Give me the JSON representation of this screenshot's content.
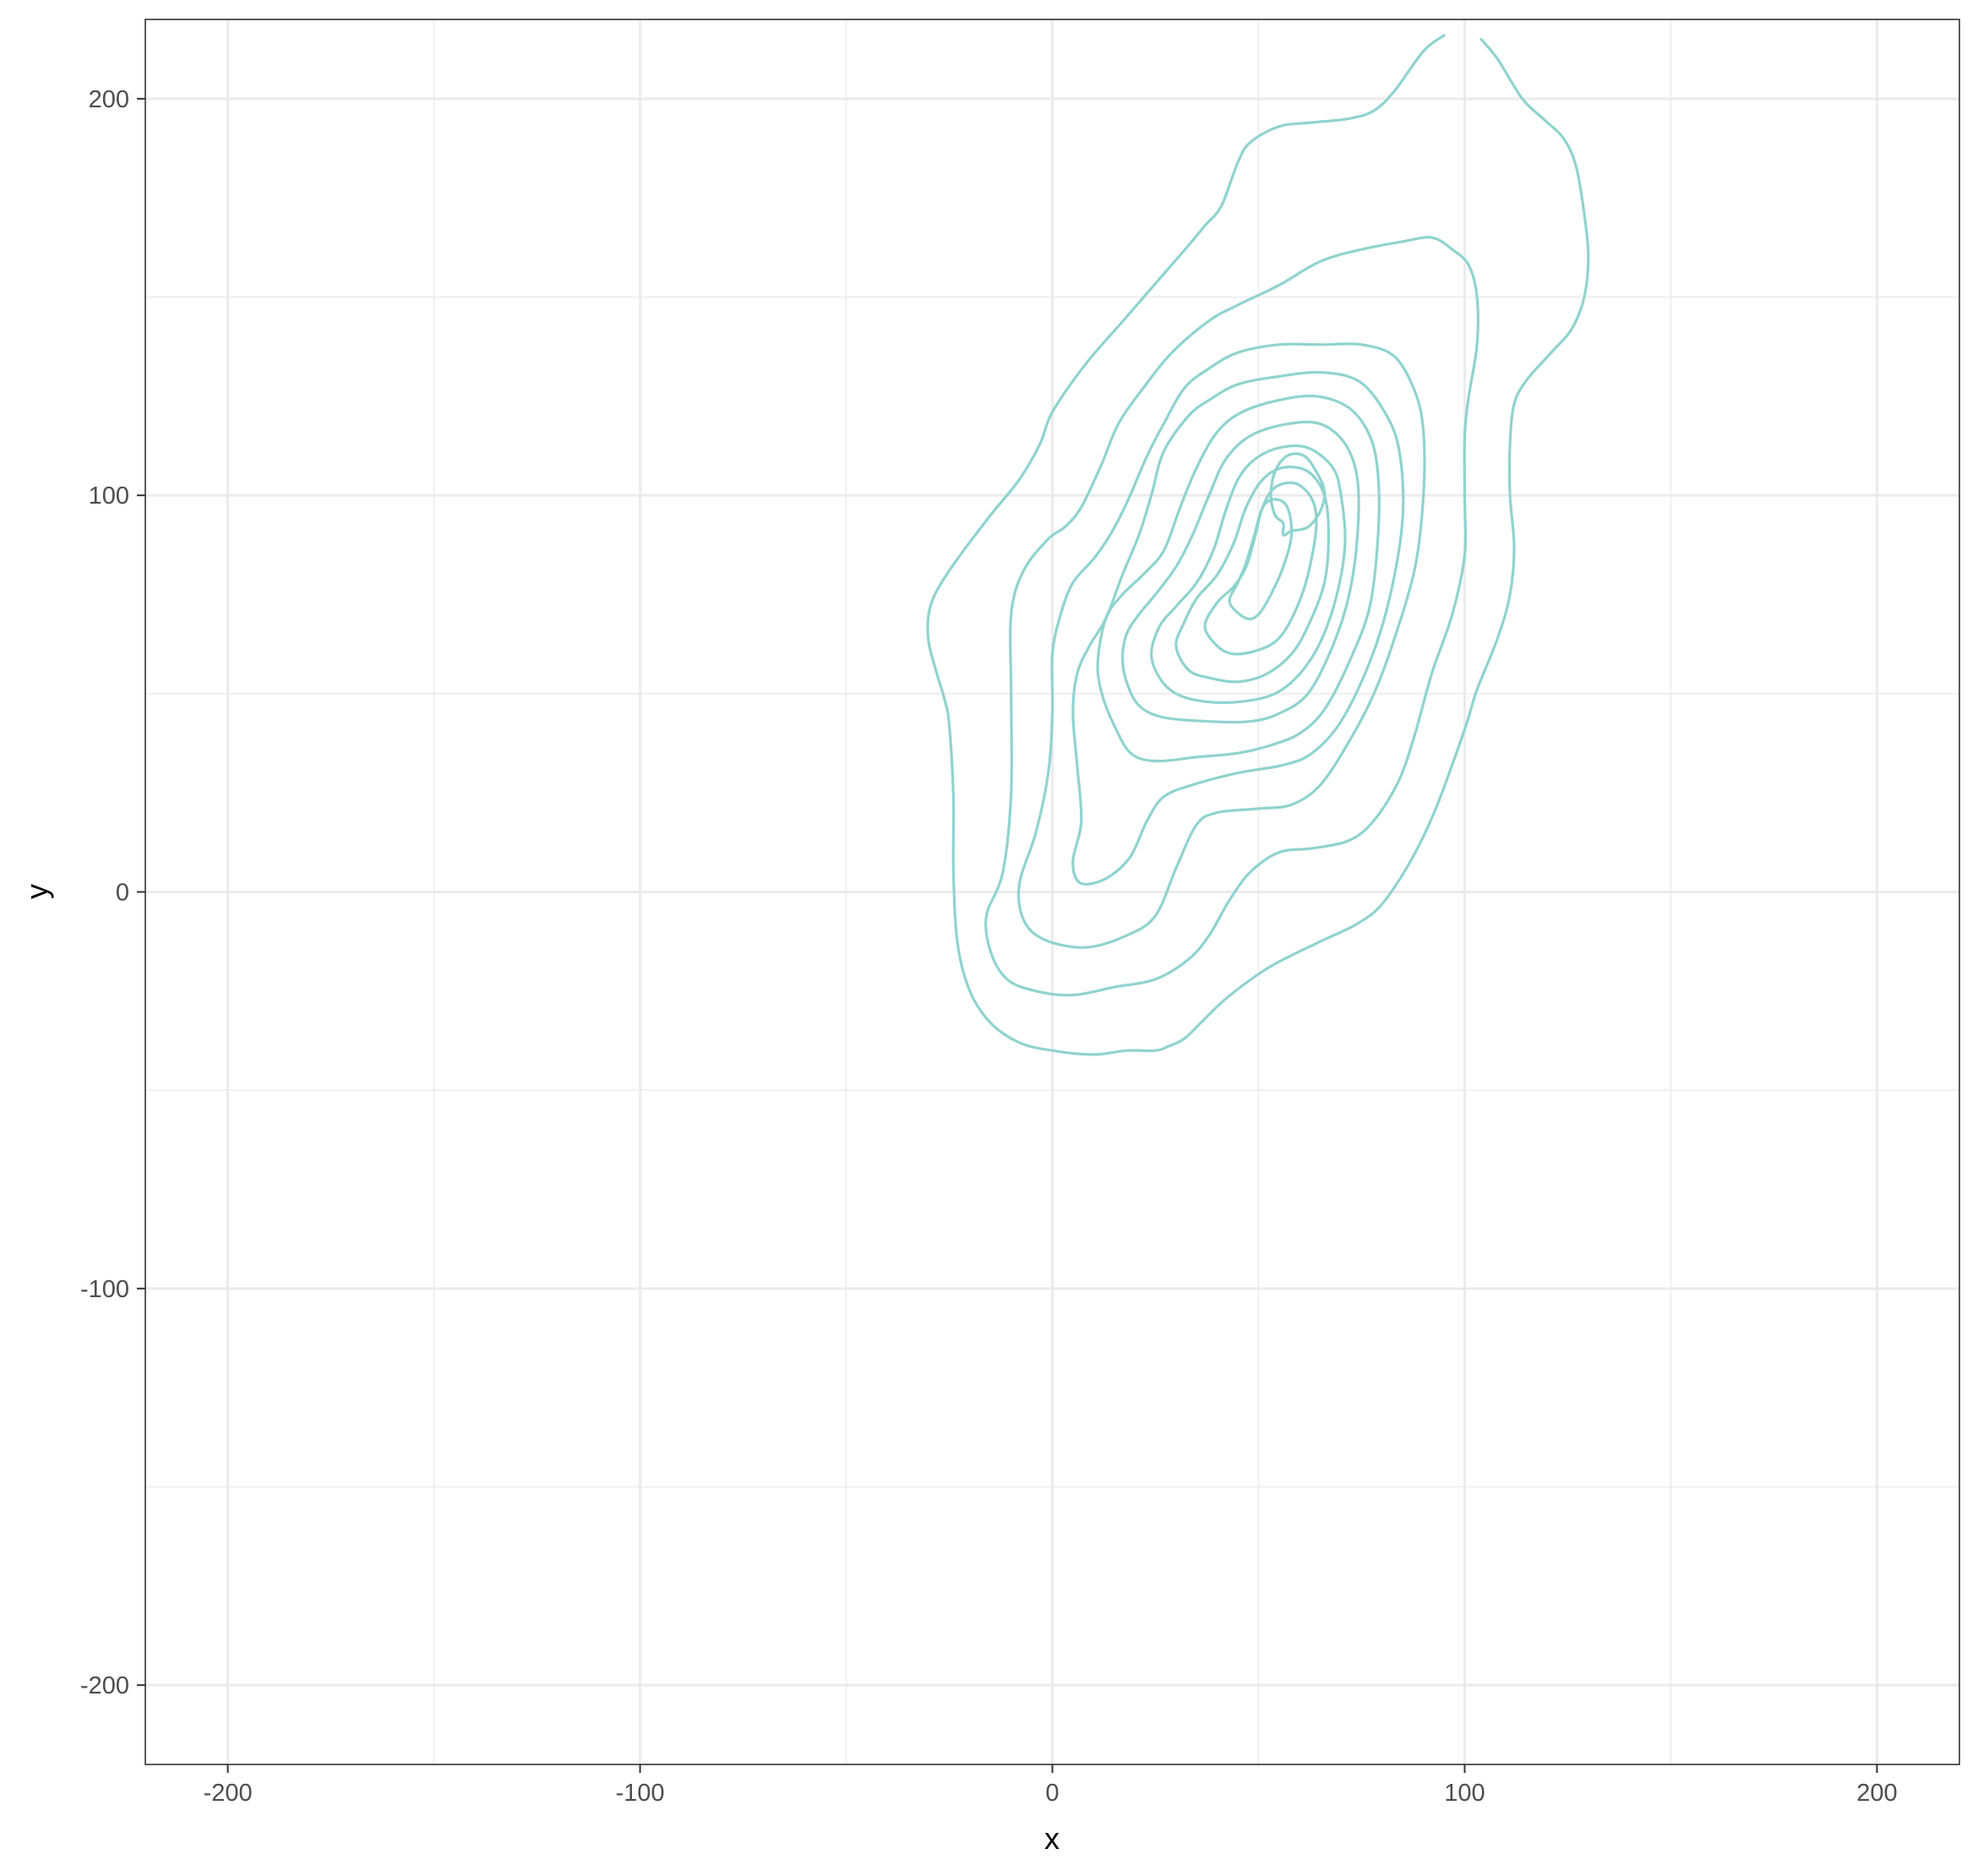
{
  "chart_data": {
    "type": "contour",
    "title": "",
    "xlabel": "x",
    "ylabel": "y",
    "xlim": [
      -220,
      220
    ],
    "ylim": [
      -220,
      220
    ],
    "grid": true,
    "legend": "none",
    "colors": {
      "contour": "#8fd3cf",
      "grid": "#ebebeb",
      "panel_border": "#333333",
      "tick_text": "#4d4d4d",
      "axis_title": "#000000"
    },
    "x_ticks": [
      {
        "value": -200,
        "label": "-200"
      },
      {
        "value": -100,
        "label": "-100"
      },
      {
        "value": 0,
        "label": "0"
      },
      {
        "value": 100,
        "label": "100"
      },
      {
        "value": 200,
        "label": "200"
      }
    ],
    "y_ticks": [
      {
        "value": 200,
        "label": "200"
      },
      {
        "value": 100,
        "label": "100"
      },
      {
        "value": 0,
        "label": "0"
      },
      {
        "value": -100,
        "label": "-100"
      },
      {
        "value": -200,
        "label": "-200"
      }
    ],
    "minor_grid": {
      "x": [
        -150,
        -50,
        50,
        150
      ],
      "y": [
        150,
        50,
        -50,
        -150
      ]
    },
    "contours": [
      {
        "level": 1,
        "closed": false,
        "points": [
          [
            95,
            216
          ],
          [
            90,
            212
          ],
          [
            83,
            202
          ],
          [
            78,
            197
          ],
          [
            72,
            195
          ],
          [
            63,
            194
          ],
          [
            55,
            193
          ],
          [
            48,
            189
          ],
          [
            45,
            184
          ],
          [
            41,
            173
          ],
          [
            37,
            168
          ],
          [
            33,
            163
          ],
          [
            28,
            157
          ],
          [
            18,
            145
          ],
          [
            8,
            133
          ],
          [
            0,
            121
          ],
          [
            -3,
            113
          ],
          [
            -8,
            104
          ],
          [
            -15,
            95
          ],
          [
            -23,
            84
          ],
          [
            -28,
            76
          ],
          [
            -30,
            70
          ],
          [
            -30,
            63
          ],
          [
            -28,
            55
          ],
          [
            -26,
            48
          ],
          [
            -25,
            42
          ],
          [
            -24,
            24
          ],
          [
            -24,
            5
          ],
          [
            -23,
            -13
          ],
          [
            -20,
            -25
          ],
          [
            -15,
            -33
          ],
          [
            -8,
            -38
          ],
          [
            0,
            -40
          ],
          [
            10,
            -41
          ],
          [
            18,
            -40
          ],
          [
            25,
            -40
          ],
          [
            28,
            -39
          ],
          [
            32,
            -37
          ],
          [
            36,
            -33
          ],
          [
            42,
            -27
          ],
          [
            51,
            -20
          ],
          [
            58,
            -16
          ],
          [
            66,
            -12
          ],
          [
            74,
            -8
          ],
          [
            80,
            -3
          ],
          [
            87,
            8
          ],
          [
            93,
            21
          ],
          [
            100,
            41
          ],
          [
            103,
            51
          ],
          [
            108,
            64
          ],
          [
            111,
            75
          ],
          [
            112,
            87
          ],
          [
            111,
            100
          ],
          [
            111,
            113
          ],
          [
            112,
            123
          ],
          [
            115,
            129
          ],
          [
            121,
            136
          ],
          [
            126,
            142
          ],
          [
            129,
            150
          ],
          [
            130,
            160
          ],
          [
            129,
            171
          ],
          [
            127,
            183
          ],
          [
            124,
            190
          ],
          [
            119,
            195
          ],
          [
            114,
            200
          ],
          [
            108,
            210
          ],
          [
            104,
            215
          ]
        ]
      },
      {
        "level": 2,
        "closed": true,
        "points": [
          [
            -1,
            89
          ],
          [
            -7,
            81
          ],
          [
            -10,
            70
          ],
          [
            -10,
            50
          ],
          [
            -10,
            25
          ],
          [
            -12,
            5
          ],
          [
            -16,
            -6
          ],
          [
            -15,
            -15
          ],
          [
            -11,
            -22
          ],
          [
            -4,
            -25
          ],
          [
            5,
            -26
          ],
          [
            15,
            -24
          ],
          [
            25,
            -22
          ],
          [
            33,
            -17
          ],
          [
            38,
            -11
          ],
          [
            43,
            -2
          ],
          [
            48,
            5
          ],
          [
            55,
            10
          ],
          [
            63,
            11
          ],
          [
            72,
            13
          ],
          [
            78,
            18
          ],
          [
            84,
            28
          ],
          [
            88,
            40
          ],
          [
            92,
            55
          ],
          [
            97,
            70
          ],
          [
            100,
            85
          ],
          [
            100,
            100
          ],
          [
            100,
            115
          ],
          [
            101,
            125
          ],
          [
            103,
            138
          ],
          [
            103,
            150
          ],
          [
            101,
            158
          ],
          [
            97,
            162
          ],
          [
            92,
            165
          ],
          [
            85,
            164
          ],
          [
            75,
            162
          ],
          [
            65,
            159
          ],
          [
            55,
            153
          ],
          [
            45,
            148
          ],
          [
            38,
            144
          ],
          [
            29,
            136
          ],
          [
            22,
            127
          ],
          [
            16,
            118
          ],
          [
            12,
            108
          ],
          [
            7,
            97
          ],
          [
            3,
            92
          ]
        ]
      },
      {
        "level": 3,
        "closed": true,
        "points": [
          [
            5,
            78
          ],
          [
            2,
            70
          ],
          [
            0,
            60
          ],
          [
            0,
            45
          ],
          [
            -1,
            30
          ],
          [
            -4,
            15
          ],
          [
            -8,
            2
          ],
          [
            -7,
            -7
          ],
          [
            -2,
            -12
          ],
          [
            8,
            -14
          ],
          [
            18,
            -11
          ],
          [
            25,
            -6
          ],
          [
            30,
            6
          ],
          [
            35,
            17
          ],
          [
            40,
            20
          ],
          [
            50,
            21
          ],
          [
            58,
            22
          ],
          [
            65,
            27
          ],
          [
            72,
            38
          ],
          [
            78,
            50
          ],
          [
            83,
            64
          ],
          [
            88,
            82
          ],
          [
            90,
            100
          ],
          [
            90,
            116
          ],
          [
            88,
            126
          ],
          [
            83,
            135
          ],
          [
            75,
            138
          ],
          [
            65,
            138
          ],
          [
            55,
            138
          ],
          [
            45,
            136
          ],
          [
            38,
            132
          ],
          [
            32,
            127
          ],
          [
            27,
            118
          ],
          [
            23,
            110
          ],
          [
            18,
            98
          ],
          [
            14,
            90
          ],
          [
            10,
            84
          ]
        ]
      },
      {
        "level": 4,
        "closed": true,
        "points": [
          [
            9,
            62
          ],
          [
            6,
            55
          ],
          [
            5,
            45
          ],
          [
            6,
            32
          ],
          [
            7,
            18
          ],
          [
            5,
            8
          ],
          [
            6,
            3
          ],
          [
            9,
            2
          ],
          [
            14,
            4
          ],
          [
            19,
            9
          ],
          [
            23,
            18
          ],
          [
            27,
            24
          ],
          [
            34,
            27
          ],
          [
            45,
            30
          ],
          [
            56,
            32
          ],
          [
            63,
            35
          ],
          [
            70,
            43
          ],
          [
            77,
            58
          ],
          [
            82,
            75
          ],
          [
            85,
            95
          ],
          [
            84,
            112
          ],
          [
            80,
            122
          ],
          [
            74,
            129
          ],
          [
            65,
            131
          ],
          [
            55,
            130
          ],
          [
            45,
            128
          ],
          [
            38,
            124
          ],
          [
            33,
            120
          ],
          [
            27,
            111
          ],
          [
            24,
            100
          ],
          [
            21,
            90
          ],
          [
            17,
            80
          ],
          [
            13,
            69
          ]
        ]
      },
      {
        "level": 5,
        "closed": true,
        "points": [
          [
            11,
            58
          ],
          [
            12,
            50
          ],
          [
            15,
            42
          ],
          [
            19,
            35
          ],
          [
            25,
            33
          ],
          [
            35,
            34
          ],
          [
            45,
            35
          ],
          [
            53,
            37
          ],
          [
            60,
            40
          ],
          [
            66,
            46
          ],
          [
            72,
            58
          ],
          [
            77,
            72
          ],
          [
            79,
            90
          ],
          [
            79,
            105
          ],
          [
            77,
            115
          ],
          [
            72,
            122
          ],
          [
            64,
            125
          ],
          [
            55,
            124
          ],
          [
            46,
            121
          ],
          [
            40,
            116
          ],
          [
            35,
            107
          ],
          [
            31,
            97
          ],
          [
            27,
            86
          ],
          [
            22,
            80
          ],
          [
            17,
            75
          ],
          [
            13,
            69
          ]
        ]
      },
      {
        "level": 6,
        "closed": true,
        "points": [
          [
            17,
            59
          ],
          [
            18,
            53
          ],
          [
            21,
            47
          ],
          [
            27,
            44
          ],
          [
            38,
            43
          ],
          [
            48,
            43
          ],
          [
            55,
            45
          ],
          [
            62,
            50
          ],
          [
            68,
            62
          ],
          [
            72,
            75
          ],
          [
            74,
            90
          ],
          [
            74,
            104
          ],
          [
            71,
            113
          ],
          [
            65,
            118
          ],
          [
            57,
            118
          ],
          [
            48,
            115
          ],
          [
            42,
            109
          ],
          [
            38,
            100
          ],
          [
            34,
            90
          ],
          [
            30,
            82
          ],
          [
            25,
            75
          ],
          [
            21,
            70
          ],
          [
            18,
            65
          ]
        ]
      },
      {
        "level": 7,
        "closed": true,
        "points": [
          [
            24,
            60
          ],
          [
            26,
            54
          ],
          [
            30,
            50
          ],
          [
            37,
            48
          ],
          [
            46,
            48
          ],
          [
            54,
            50
          ],
          [
            60,
            55
          ],
          [
            65,
            63
          ],
          [
            69,
            75
          ],
          [
            71,
            88
          ],
          [
            70,
            100
          ],
          [
            68,
            107
          ],
          [
            62,
            112
          ],
          [
            55,
            112
          ],
          [
            49,
            109
          ],
          [
            45,
            104
          ],
          [
            42,
            96
          ],
          [
            39,
            86
          ],
          [
            35,
            78
          ],
          [
            30,
            72
          ],
          [
            26,
            67
          ]
        ]
      },
      {
        "level": 8,
        "closed": true,
        "points": [
          [
            30,
            62
          ],
          [
            33,
            56
          ],
          [
            38,
            54
          ],
          [
            45,
            53
          ],
          [
            52,
            55
          ],
          [
            58,
            60
          ],
          [
            62,
            67
          ],
          [
            66,
            78
          ],
          [
            67,
            90
          ],
          [
            66,
            100
          ],
          [
            62,
            106
          ],
          [
            56,
            107
          ],
          [
            51,
            104
          ],
          [
            47,
            97
          ],
          [
            44,
            88
          ],
          [
            40,
            80
          ],
          [
            35,
            74
          ],
          [
            32,
            68
          ]
        ]
      },
      {
        "level": 9,
        "closed": true,
        "points": [
          [
            37,
            67
          ],
          [
            40,
            62
          ],
          [
            44,
            60
          ],
          [
            50,
            61
          ],
          [
            55,
            64
          ],
          [
            59,
            71
          ],
          [
            62,
            80
          ],
          [
            64,
            92
          ],
          [
            63,
            99
          ],
          [
            59,
            103
          ],
          [
            54,
            102
          ],
          [
            51,
            97
          ],
          [
            49,
            89
          ],
          [
            47,
            82
          ],
          [
            44,
            77
          ],
          [
            40,
            73
          ]
        ]
      },
      {
        "level": 10,
        "closed": true,
        "points": [
          [
            43,
            73
          ],
          [
            47,
            69
          ],
          [
            50,
            70
          ],
          [
            53,
            75
          ],
          [
            56,
            82
          ],
          [
            58,
            90
          ],
          [
            57,
            97
          ],
          [
            54,
            99
          ],
          [
            51,
            97
          ],
          [
            49,
            90
          ],
          [
            47,
            83
          ],
          [
            45,
            78
          ]
        ]
      },
      {
        "level": 11,
        "closed": true,
        "points": [
          [
            54,
            95
          ],
          [
            53,
            100
          ],
          [
            54,
            106
          ],
          [
            57,
            110
          ],
          [
            61,
            110
          ],
          [
            64,
            106
          ],
          [
            66,
            101
          ],
          [
            65,
            96
          ],
          [
            62,
            92
          ],
          [
            58,
            91
          ],
          [
            56,
            90
          ],
          [
            56,
            93
          ]
        ]
      }
    ]
  }
}
